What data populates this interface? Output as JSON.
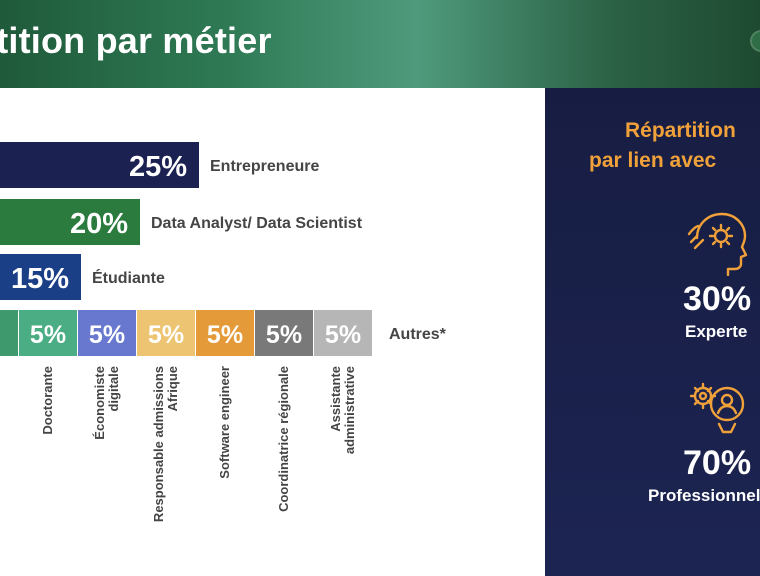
{
  "header": {
    "title": "rtition par métier"
  },
  "chart_data": {
    "type": "bar",
    "orientation": "horizontal",
    "rows": [
      {
        "label": "Entrepreneure",
        "value": 25,
        "value_label": "25%",
        "color": "#1b2150"
      },
      {
        "label": "Data Analyst/ Data Scientist",
        "value": 20,
        "value_label": "20%",
        "color": "#2b7a3e"
      },
      {
        "label": "Étudiante",
        "value": 15,
        "value_label": "15%",
        "color": "#1b3f86"
      }
    ],
    "stacked_row": {
      "label": "Autres*",
      "segments": [
        {
          "label": "",
          "value": 5,
          "value_label": "",
          "color": "#3e9a6c"
        },
        {
          "label": "Doctorante",
          "value": 5,
          "value_label": "5%",
          "color": "#4aad83"
        },
        {
          "label": "Économiste digitale",
          "value": 5,
          "value_label": "5%",
          "color": "#6878cf"
        },
        {
          "label": "Responsable admissions Afrique",
          "value": 5,
          "value_label": "5%",
          "color": "#ecc472"
        },
        {
          "label": "Software engineer",
          "value": 5,
          "value_label": "5%",
          "color": "#e59a3a"
        },
        {
          "label": "Coordinatrice régionale",
          "value": 5,
          "value_label": "5%",
          "color": "#797979"
        },
        {
          "label": "Assistante administrative",
          "value": 5,
          "value_label": "5%",
          "color": "#b6b6b6"
        }
      ]
    }
  },
  "side_panel": {
    "title_line1": "Répartition",
    "title_line2": "par lien avec",
    "title_color": "#f0a13a",
    "items": [
      {
        "percent": "30%",
        "label": "Experte",
        "icon": "head-gear-icon"
      },
      {
        "percent": "70%",
        "label": "Professionnelle",
        "icon": "user-gear-icon"
      }
    ]
  }
}
